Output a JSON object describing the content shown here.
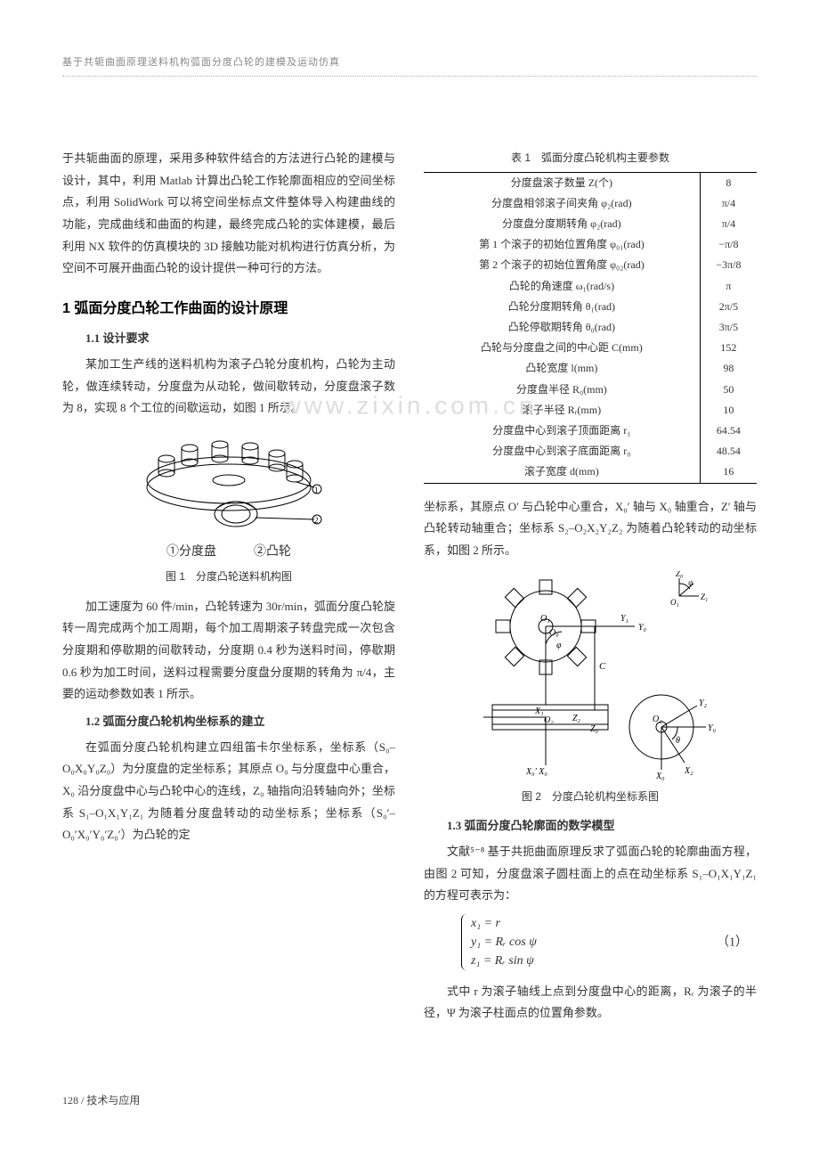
{
  "running_head": "基于共轭曲面原理送料机构弧面分度凸轮的建模及运动仿真",
  "watermark": "www.zixin.com.cn",
  "left": {
    "intro": "于共轭曲面的原理，采用多种软件结合的方法进行凸轮的建模与设计，其中，利用 Matlab 计算出凸轮工作轮廓面相应的空间坐标点，利用 SolidWork 可以将空间坐标点文件整体导入构建曲线的功能，完成曲线和曲面的构建，最终完成凸轮的实体建模，最后利用 NX 软件的仿真模块的 3D 接触功能对机构进行仿真分析，为空间不可展开曲面凸轮的设计提供一种可行的方法。",
    "h2": "1 弧面分度凸轮工作曲面的设计原理",
    "s11_title": "1.1 设计要求",
    "s11_p1": "某加工生产线的送料机构为滚子凸轮分度机构，凸轮为主动轮，做连续转动，分度盘为从动轮，做间歇转动，分度盘滚子数为 8，实现 8 个工位的间歇运动，如图 1 所示。",
    "fig1_legend": "①分度盘　　　②凸轮",
    "fig1_caption": "图 1　分度凸轮送料机构图",
    "s11_p2": "加工速度为 60 件/min，凸轮转速为 30r/min，弧面分度凸轮旋转一周完成两个加工周期，每个加工周期滚子转盘完成一次包含分度期和停歇期的间歇转动，分度期 0.4 秒为送料时间，停歇期 0.6 秒为加工时间，送料过程需要分度盘分度期的转角为 π/4，主要的运动参数如表 1 所示。",
    "s12_title": "1.2 弧面分度凸轮机构坐标系的建立",
    "s12_p1": "在弧面分度凸轮机构建立四组笛卡尔坐标系，坐标系（S₀–O₀X₀Y₀Z₀）为分度盘的定坐标系；其原点 O₀ 与分度盘中心重合，X₀ 沿分度盘中心与凸轮中心的连线，Z₀ 轴指向沿转轴向外；坐标系 S₁–O₁X₁Y₁Z₁ 为随着分度盘转动的动坐标系；坐标系（S₀′–O₀′X₀′Y₀′Z₀′）为凸轮的定"
  },
  "table1": {
    "caption": "表 1　弧面分度凸轮机构主要参数",
    "rows": [
      [
        "分度盘滚子数量 Z(个)",
        "8"
      ],
      [
        "分度盘相邻滚子间夹角 φ₂(rad)",
        "π/4"
      ],
      [
        "分度盘分度期转角 φ₂(rad)",
        "π/4"
      ],
      [
        "第 1 个滚子的初始位置角度 φ₀₁(rad)",
        "−π/8"
      ],
      [
        "第 2 个滚子的初始位置角度 φ₀₂(rad)",
        "−3π/8"
      ],
      [
        "凸轮的角速度 ω₁(rad/s)",
        "π"
      ],
      [
        "凸轮分度期转角 θ₁(rad)",
        "2π/5"
      ],
      [
        "凸轮停歇期转角 θ₀(rad)",
        "3π/5"
      ],
      [
        "凸轮与分度盘之间的中心距 C(mm)",
        "152"
      ],
      [
        "凸轮宽度 l(mm)",
        "98"
      ],
      [
        "分度盘半径 R₀(mm)",
        "50"
      ],
      [
        "滚子半径 Rᵣ(mm)",
        "10"
      ],
      [
        "分度盘中心到滚子顶面距离 r₁",
        "64.54"
      ],
      [
        "分度盘中心到滚子底面距离 r₀",
        "48.54"
      ],
      [
        "滚子宽度 d(mm)",
        "16"
      ]
    ]
  },
  "right": {
    "p_after_table": "坐标系，其原点 O′ 与凸轮中心重合，X₀′ 轴与 X₀ 轴重合，Z′ 轴与凸轮转动轴重合；坐标系 S₂–O₂X₂Y₂Z₂ 为随着凸轮转动的动坐标系，如图 2 所示。",
    "fig2_caption": "图 2　分度凸轮机构坐标系图",
    "s13_title": "1.3 弧面分度凸轮廓面的数学模型",
    "s13_p1": "文献⁵⁻⁸ 基于共扼曲面原理反求了弧面凸轮的轮廓曲面方程，由图 2 可知，分度盘滚子圆柱面上的点在动坐标系 S₁–O₁X₁Y₁Z₁ 的方程可表示为：",
    "eq1": {
      "l1": "x₁ = r",
      "l2": "y₁ = Rᵣ cos ψ",
      "l3": "z₁ = Rᵣ sin ψ",
      "num": "（1）"
    },
    "s13_p2": "式中 r 为滚子轴线上点到分度盘中心的距离，Rᵣ 为滚子的半径，Ψ 为滚子柱面点的位置角参数。"
  },
  "footer": "128 / 技术与应用",
  "style": {
    "page_bg": "#ffffff",
    "text_color": "#333333",
    "muted": "#888888",
    "watermark_color": "#dddddd",
    "border_color": "#000000",
    "fig_stroke": "#000000",
    "base_font_pt": 13,
    "heading_font_pt": 16,
    "caption_font_pt": 12
  }
}
